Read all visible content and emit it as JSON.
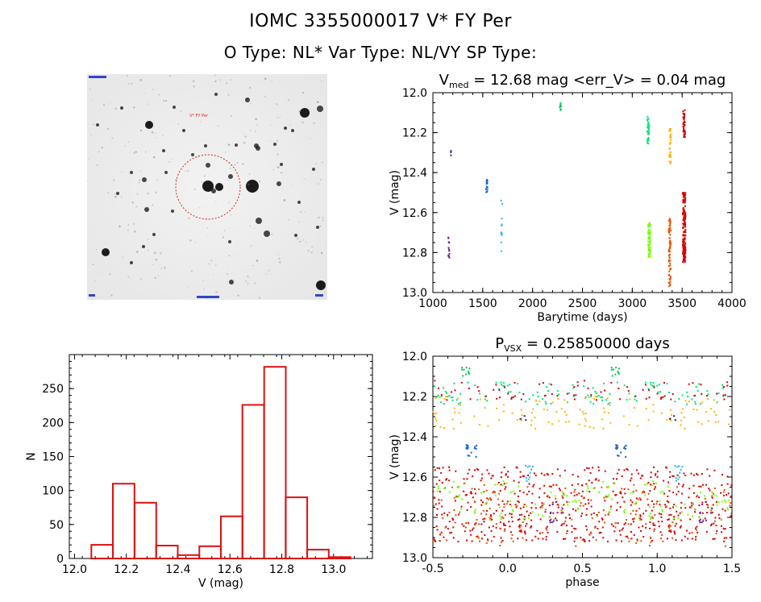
{
  "header": {
    "title_line1": "IOMC 3355000017    V* FY Per",
    "title_line2": "O Type: NL*  Var Type: NL/VY  SP Type:"
  },
  "sky_image": {
    "marker_label": "V* FY Per"
  },
  "colors": {
    "axis": "#000000",
    "histogram": "#dd1111",
    "circle": "#dd2222",
    "series": [
      "#6a1b9a",
      "#1565c0",
      "#29b6f6",
      "#00c853",
      "#76ff03",
      "#ffb300",
      "#e65100",
      "#d50000"
    ]
  },
  "chart_data": [
    {
      "id": "light-curve",
      "type": "scatter",
      "title": "V",
      "title_sub": "med",
      "title_rest": " = 12.68 mag <err_V> = 0.04 mag",
      "xlabel": "Barytime (days)",
      "ylabel": "V (mag)",
      "xlim": [
        1000,
        4000
      ],
      "ylim": [
        13.0,
        12.0
      ],
      "xticks": [
        "1000",
        "1500",
        "2000",
        "2500",
        "3000",
        "3500",
        "4000"
      ],
      "yticks": [
        "12.0",
        "12.2",
        "12.4",
        "12.6",
        "12.8",
        "13.0"
      ],
      "series": [
        {
          "name": "S1",
          "color": "#6a1b9a",
          "x": 1160,
          "x_spread": 6,
          "y_min": 12.72,
          "y_max": 12.83,
          "n": 12
        },
        {
          "name": "S1b",
          "color": "#1a237e",
          "x": 1180,
          "x_spread": 3,
          "y_min": 12.29,
          "y_max": 12.32,
          "n": 3
        },
        {
          "name": "S2",
          "color": "#1565c0",
          "x": 1540,
          "x_spread": 8,
          "y_min": 12.43,
          "y_max": 12.5,
          "n": 14
        },
        {
          "name": "S3",
          "color": "#29b6f6",
          "x": 1690,
          "x_spread": 6,
          "y_min": 12.53,
          "y_max": 12.8,
          "n": 12
        },
        {
          "name": "S4",
          "color": "#00c853",
          "x": 2280,
          "x_spread": 6,
          "y_min": 12.05,
          "y_max": 12.09,
          "n": 10
        },
        {
          "name": "S5",
          "color": "#00e676",
          "x": 3160,
          "x_spread": 10,
          "y_min": 12.12,
          "y_max": 12.26,
          "n": 40
        },
        {
          "name": "S6",
          "color": "#76ff03",
          "x": 3170,
          "x_spread": 12,
          "y_min": 12.65,
          "y_max": 12.83,
          "n": 60
        },
        {
          "name": "S7",
          "color": "#ffb300",
          "x": 3380,
          "x_spread": 8,
          "y_min": 12.18,
          "y_max": 12.36,
          "n": 35
        },
        {
          "name": "S8",
          "color": "#e65100",
          "x": 3375,
          "x_spread": 10,
          "y_min": 12.63,
          "y_max": 12.97,
          "n": 70
        },
        {
          "name": "S9",
          "color": "#d50000",
          "x": 3520,
          "x_spread": 14,
          "y_min": 12.5,
          "y_max": 12.85,
          "n": 180
        },
        {
          "name": "S10",
          "color": "#d50000",
          "x": 3520,
          "x_spread": 10,
          "y_min": 12.08,
          "y_max": 12.23,
          "n": 40
        }
      ]
    },
    {
      "id": "histogram",
      "type": "bar",
      "title": "",
      "xlabel": "V (mag)",
      "ylabel": "N",
      "xlim": [
        11.98,
        13.15
      ],
      "ylim": [
        0,
        300
      ],
      "bin_width": 0.0833,
      "bin_starts": [
        12.065,
        12.148,
        12.232,
        12.315,
        12.398,
        12.482,
        12.565,
        12.648,
        12.732,
        12.815,
        12.898,
        12.982
      ],
      "values": [
        20,
        110,
        82,
        19,
        5,
        18,
        62,
        226,
        282,
        90,
        13,
        2
      ],
      "xticks": [
        "12.0",
        "12.2",
        "12.4",
        "12.6",
        "12.8",
        "13.0"
      ],
      "yticks": [
        "0",
        "50",
        "100",
        "150",
        "200",
        "250"
      ]
    },
    {
      "id": "phase-curve",
      "type": "scatter",
      "title": "P",
      "title_sub": "VSX",
      "title_rest": " = 0.25850000 days",
      "xlabel": "phase",
      "ylabel": "V (mag)",
      "xlim": [
        -0.5,
        1.5
      ],
      "ylim": [
        13.0,
        12.0
      ],
      "xticks": [
        "-0.5",
        "0.0",
        "0.5",
        "1.0",
        "1.5"
      ],
      "yticks": [
        "12.0",
        "12.2",
        "12.4",
        "12.6",
        "12.8",
        "13.0"
      ],
      "groups": [
        {
          "color": "#d50000",
          "y_min": 12.55,
          "y_max": 12.92,
          "n": 300
        },
        {
          "color": "#e65100",
          "y_min": 12.62,
          "y_max": 12.95,
          "n": 80
        },
        {
          "color": "#76ff03",
          "y_min": 12.62,
          "y_max": 12.82,
          "n": 70
        },
        {
          "color": "#00e676",
          "y_min": 12.13,
          "y_max": 12.24,
          "n": 60
        },
        {
          "color": "#ffb300",
          "y_min": 12.2,
          "y_max": 12.36,
          "n": 60
        },
        {
          "color": "#d50000",
          "y_min": 12.12,
          "y_max": 12.22,
          "n": 40
        },
        {
          "color": "#1565c0",
          "y_min": 12.44,
          "y_max": 12.5,
          "n": 14,
          "phase_center": -0.24,
          "phase_spread": 0.04
        },
        {
          "color": "#29b6f6",
          "y_min": 12.53,
          "y_max": 12.62,
          "n": 10,
          "phase_center": 0.14,
          "phase_spread": 0.03
        },
        {
          "color": "#00c853",
          "y_min": 12.05,
          "y_max": 12.1,
          "n": 10,
          "phase_center": -0.28,
          "phase_spread": 0.03
        },
        {
          "color": "#1a237e",
          "y_min": 12.29,
          "y_max": 12.32,
          "n": 3,
          "phase_center": 0.1,
          "phase_spread": 0.03
        },
        {
          "color": "#6a1b9a",
          "y_min": 12.72,
          "y_max": 12.83,
          "n": 12,
          "phase_center": 0.32,
          "phase_spread": 0.05
        }
      ]
    }
  ]
}
